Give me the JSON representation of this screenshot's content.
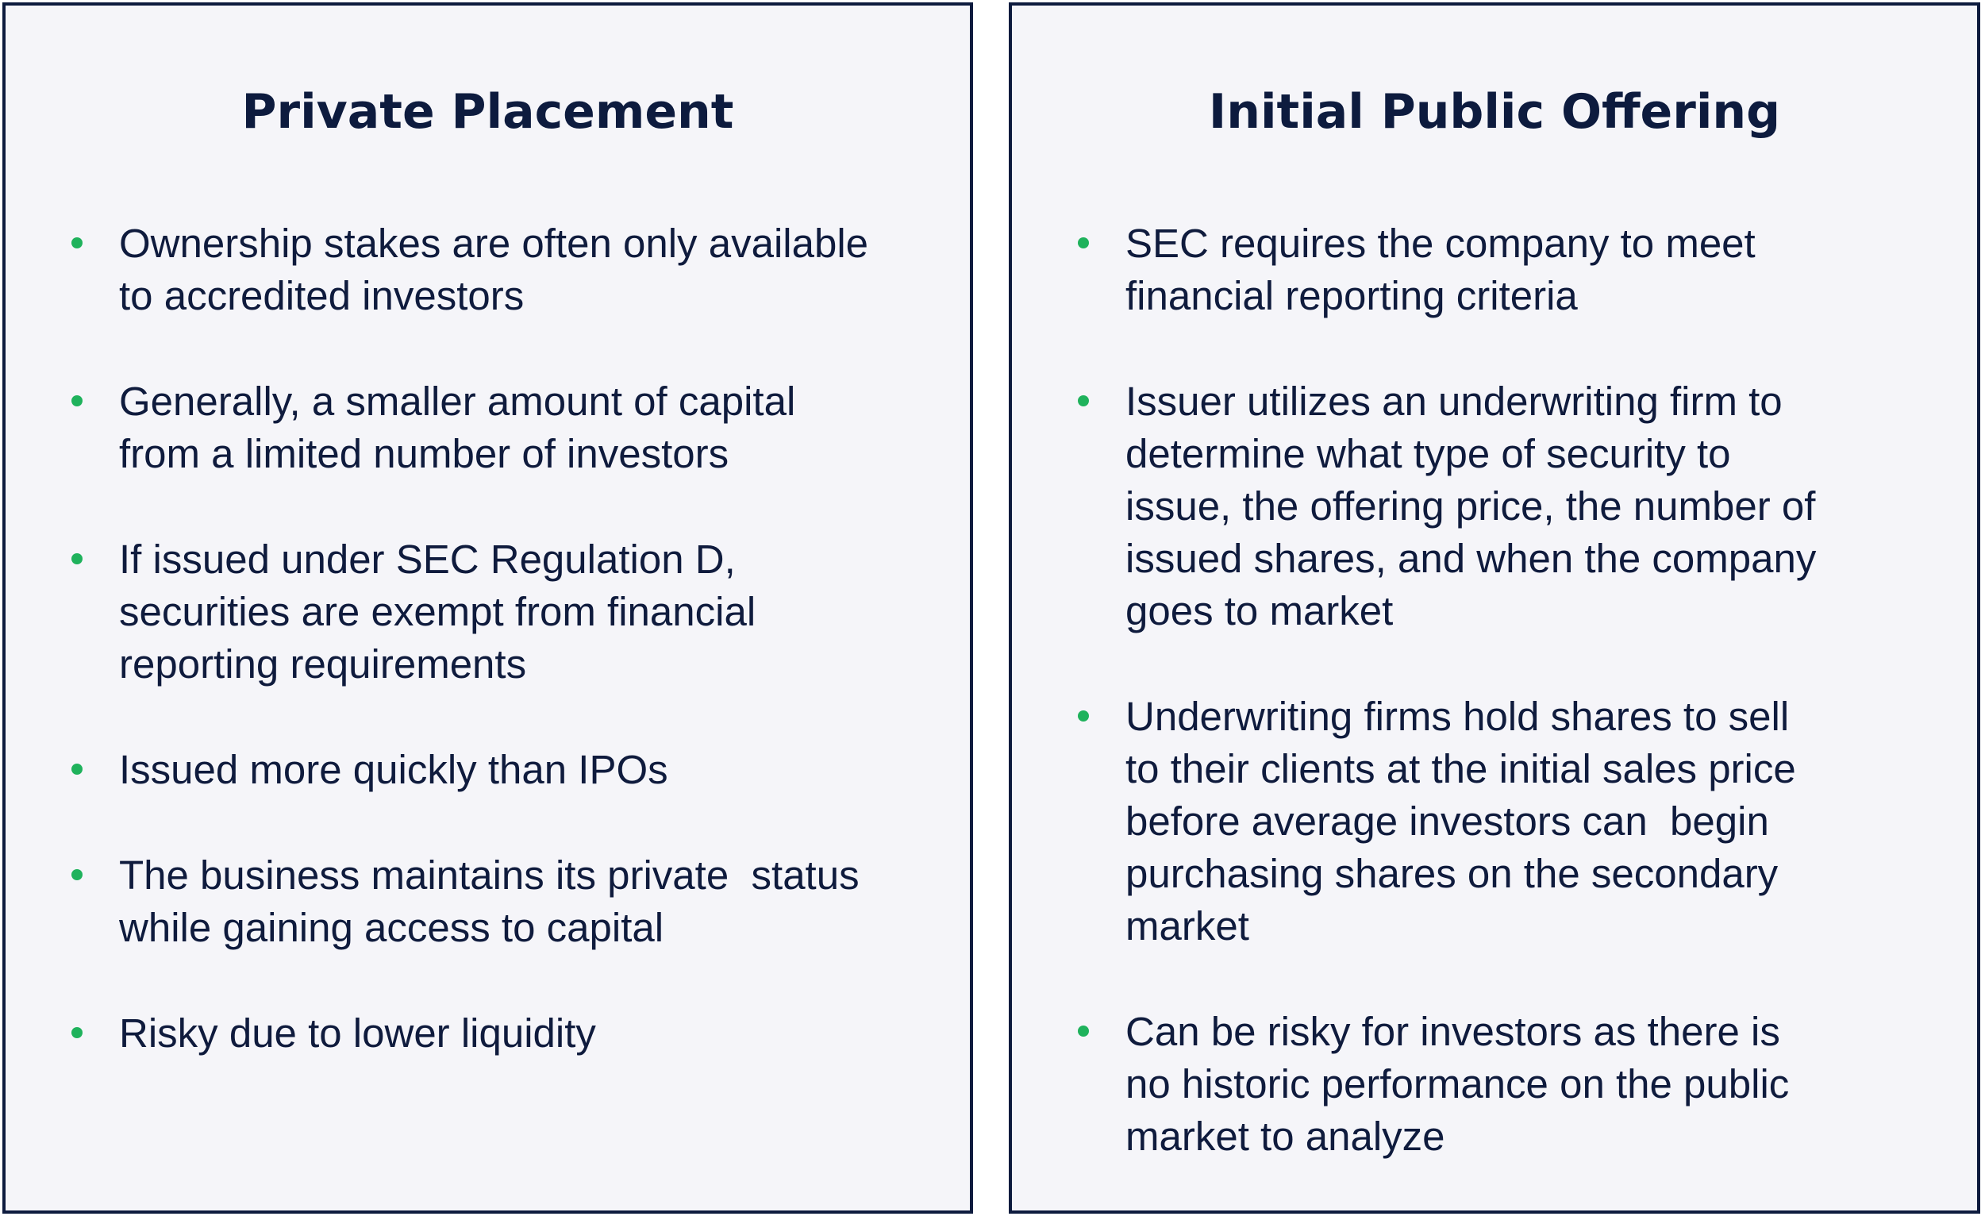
{
  "panels": [
    {
      "title": "Private Placement",
      "items": [
        "Ownership stakes are often only available\nto accredited investors",
        "Generally, a smaller amount of capital\nfrom a limited number of investors",
        "If issued under SEC Regulation D,\nsecurities are exempt from financial\nreporting requirements",
        "Issued more quickly than IPOs",
        "The business maintains its private  status\nwhile gaining access to capital",
        "Risky due to lower liquidity"
      ]
    },
    {
      "title": "Initial Public Offering",
      "items": [
        "SEC requires the company to meet\nfinancial reporting criteria",
        "Issuer utilizes an underwriting firm to\ndetermine what type of security to\nissue, the offering price, the number of\nissued shares, and when the company\ngoes to market",
        "Underwriting firms hold shares to sell\nto their clients at the initial sales price\nbefore average investors can  begin\npurchasing shares on the secondary\nmarket",
        "Can be risky for investors as there is\nno historic performance on the public\nmarket to analyze"
      ]
    }
  ],
  "colors": {
    "border": "#0d1b3e",
    "panel_background": "#f5f5f9",
    "text": "#0f1b3d",
    "bullet": "#1fb25c"
  }
}
